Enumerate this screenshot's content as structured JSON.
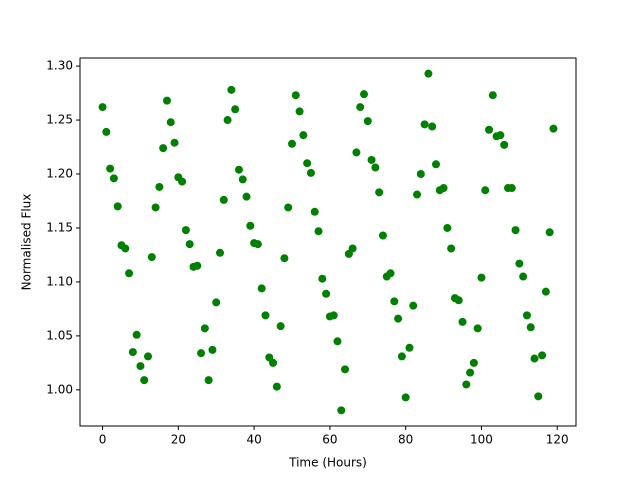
{
  "chart_data": {
    "type": "scatter",
    "x_label": "Time (Hours)",
    "y_label": "Normalised Flux",
    "color": "#008000",
    "xlim": [
      -5.95,
      124.95
    ],
    "xticks": [
      0,
      20,
      40,
      60,
      80,
      100,
      120
    ],
    "ylim": [
      0.9665,
      1.3075
    ],
    "yticks": [
      {
        "value": 1.0,
        "label": "1.00"
      },
      1.05,
      {
        "value": 1.1,
        "label": "1.10"
      },
      1.15,
      {
        "value": 1.2,
        "label": "1.20"
      },
      1.25,
      {
        "value": 1.3,
        "label": "1.30"
      }
    ],
    "x": [
      0,
      1,
      2,
      3,
      4,
      5,
      6,
      7,
      8,
      9,
      10,
      11,
      12,
      13,
      14,
      15,
      16,
      17,
      18,
      19,
      20,
      21,
      22,
      23,
      24,
      25,
      26,
      27,
      28,
      29,
      30,
      31,
      32,
      33,
      34,
      35,
      36,
      37,
      38,
      39,
      40,
      41,
      42,
      43,
      44,
      45,
      46,
      47,
      48,
      49,
      50,
      51,
      52,
      53,
      54,
      55,
      56,
      57,
      58,
      59,
      60,
      61,
      62,
      63,
      64,
      65,
      66,
      67,
      68,
      69,
      70,
      71,
      72,
      73,
      74,
      75,
      76,
      77,
      78,
      79,
      80,
      81,
      82,
      83,
      84,
      85,
      86,
      87,
      88,
      89,
      90,
      91,
      92,
      93,
      94,
      95,
      96,
      97,
      98,
      99,
      100,
      101,
      102,
      103,
      104,
      105,
      106,
      107,
      108,
      109,
      110,
      111,
      112,
      113,
      114,
      115,
      116,
      117,
      118,
      119
    ],
    "values": [
      1.262,
      1.239,
      1.205,
      1.196,
      1.17,
      1.134,
      1.131,
      1.108,
      1.035,
      1.051,
      1.022,
      1.009,
      1.031,
      1.123,
      1.169,
      1.188,
      1.224,
      1.268,
      1.248,
      1.229,
      1.197,
      1.193,
      1.148,
      1.135,
      1.114,
      1.115,
      1.034,
      1.057,
      1.009,
      1.037,
      1.081,
      1.127,
      1.176,
      1.25,
      1.278,
      1.26,
      1.204,
      1.195,
      1.179,
      1.152,
      1.136,
      1.135,
      1.094,
      1.069,
      1.03,
      1.025,
      1.003,
      1.059,
      1.122,
      1.169,
      1.228,
      1.273,
      1.258,
      1.236,
      1.21,
      1.201,
      1.165,
      1.147,
      1.103,
      1.089,
      1.068,
      1.069,
      1.045,
      0.981,
      1.019,
      1.126,
      1.131,
      1.22,
      1.262,
      1.274,
      1.249,
      1.213,
      1.206,
      1.183,
      1.143,
      1.105,
      1.108,
      1.082,
      1.066,
      1.031,
      0.993,
      1.039,
      1.078,
      1.181,
      1.2,
      1.246,
      1.293,
      1.244,
      1.209,
      1.185,
      1.187,
      1.15,
      1.131,
      1.085,
      1.083,
      1.063,
      1.005,
      1.016,
      1.025,
      1.057,
      1.104,
      1.185,
      1.241,
      1.273,
      1.235,
      1.236,
      1.227,
      1.187,
      1.187,
      1.148,
      1.117,
      1.105,
      1.069,
      1.058,
      1.029,
      0.994,
      1.032,
      1.091,
      1.146,
      1.242
    ]
  }
}
